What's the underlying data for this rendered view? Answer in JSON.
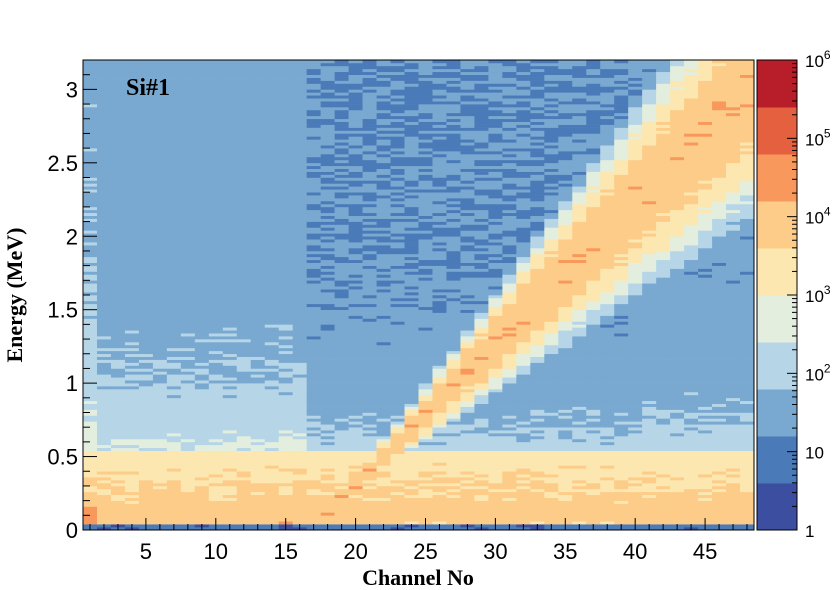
{
  "chart_data": {
    "type": "heatmap",
    "title": "",
    "annotation": "Si#1",
    "xlabel": "Channel No",
    "ylabel": "Energy (MeV)",
    "xlim": [
      0.5,
      48.5
    ],
    "ylim": [
      0,
      3.2
    ],
    "x_ticks": [
      5,
      10,
      15,
      20,
      25,
      30,
      35,
      40,
      45
    ],
    "y_ticks": [
      0,
      0.5,
      1,
      1.5,
      2,
      2.5,
      3
    ],
    "y_tick_labels": [
      "0",
      "0.5",
      "1",
      "1.5",
      "2",
      "2.5",
      "3"
    ],
    "colorbar": {
      "scale": "log",
      "range": [
        1,
        1000000
      ],
      "tick_labels": [
        {
          "base": "1",
          "exp": ""
        },
        {
          "base": "10",
          "exp": ""
        },
        {
          "base": "10",
          "exp": "2"
        },
        {
          "base": "10",
          "exp": "3"
        },
        {
          "base": "10",
          "exp": "4"
        },
        {
          "base": "10",
          "exp": "5"
        },
        {
          "base": "10",
          "exp": "6"
        }
      ],
      "palette": [
        "#3b4ea0",
        "#4a7ab8",
        "#79a8d0",
        "#b6d6e8",
        "#e3eede",
        "#fce7b0",
        "#fccc88",
        "#f8985c",
        "#e4603f",
        "#b81d2a"
      ]
    },
    "features": {
      "diagonal_line": {
        "channel_start": 23,
        "energy_start": 0.6,
        "channel_end": 48,
        "energy_end": 3.0,
        "counts": 10000
      },
      "low_energy_band": {
        "energy_range": [
          0.05,
          0.55
        ],
        "counts": 10000
      },
      "channel_boundary": 16.5,
      "noise_edge_energy": 0.04
    }
  }
}
